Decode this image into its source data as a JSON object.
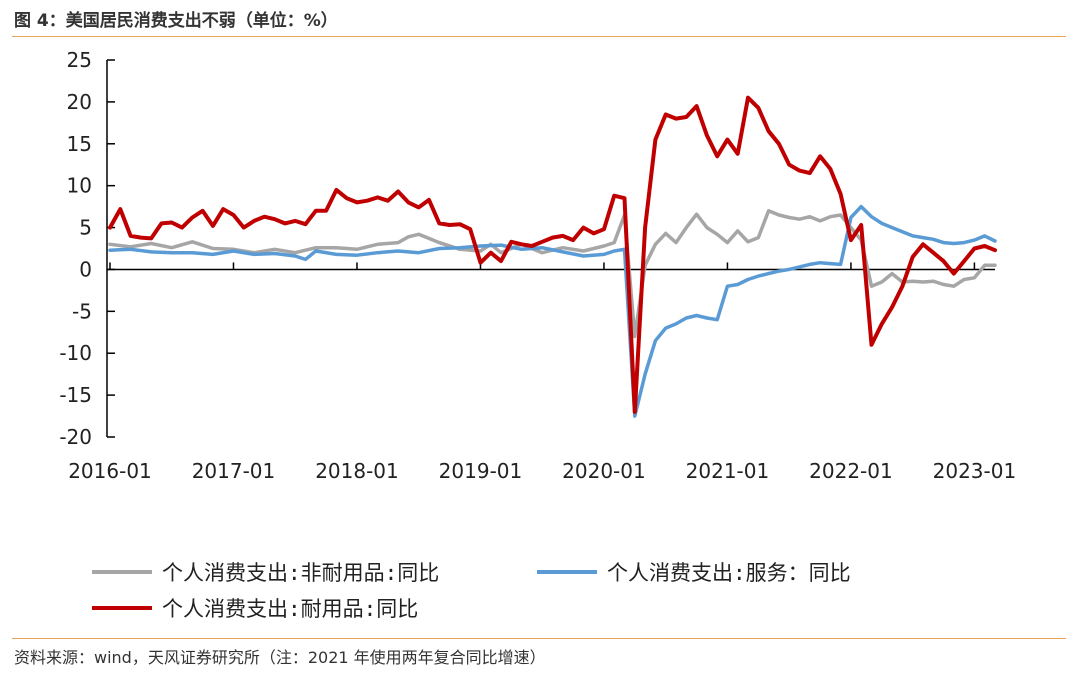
{
  "figure": {
    "title": "图 4：美国居民消费支出不弱（单位：%）",
    "source": "资料来源：wind，天风证券研究所（注：2021 年使用两年复合同比增速）"
  },
  "chart_data": {
    "type": "line",
    "x_tick_labels": [
      "2016-01",
      "2017-01",
      "2018-01",
      "2019-01",
      "2020-01",
      "2021-01",
      "2022-01",
      "2023-01"
    ],
    "y_ticks": [
      25,
      20,
      15,
      10,
      5,
      0,
      -5,
      -10,
      -15,
      -20
    ],
    "ylim": [
      -20,
      25
    ],
    "xlim": [
      "2016-01",
      "2023-03"
    ],
    "grid": false,
    "legend_position": "bottom",
    "series": [
      {
        "name": "个人消费支出:非耐用品:同比",
        "color": "#a6a6a6",
        "values": [
          [
            "2016-01",
            3.0
          ],
          [
            "2016-03",
            2.7
          ],
          [
            "2016-05",
            3.1
          ],
          [
            "2016-07",
            2.6
          ],
          [
            "2016-09",
            3.3
          ],
          [
            "2016-11",
            2.5
          ],
          [
            "2017-01",
            2.4
          ],
          [
            "2017-03",
            2.0
          ],
          [
            "2017-05",
            2.4
          ],
          [
            "2017-07",
            2.0
          ],
          [
            "2017-09",
            2.6
          ],
          [
            "2017-11",
            2.6
          ],
          [
            "2018-01",
            2.4
          ],
          [
            "2018-03",
            3.0
          ],
          [
            "2018-05",
            3.2
          ],
          [
            "2018-06",
            3.9
          ],
          [
            "2018-07",
            4.2
          ],
          [
            "2018-09",
            3.2
          ],
          [
            "2018-11",
            2.4
          ],
          [
            "2019-01",
            2.2
          ],
          [
            "2019-02",
            3.0
          ],
          [
            "2019-03",
            2.0
          ],
          [
            "2019-05",
            3.0
          ],
          [
            "2019-07",
            2.0
          ],
          [
            "2019-09",
            2.6
          ],
          [
            "2019-11",
            2.2
          ],
          [
            "2020-01",
            2.8
          ],
          [
            "2020-02",
            3.2
          ],
          [
            "2020-03",
            6.5
          ],
          [
            "2020-04",
            -8.0
          ],
          [
            "2020-05",
            0.5
          ],
          [
            "2020-06",
            3.0
          ],
          [
            "2020-07",
            4.3
          ],
          [
            "2020-08",
            3.2
          ],
          [
            "2020-09",
            5.0
          ],
          [
            "2020-10",
            6.6
          ],
          [
            "2020-11",
            5.0
          ],
          [
            "2020-12",
            4.2
          ],
          [
            "2021-01",
            3.2
          ],
          [
            "2021-02",
            4.6
          ],
          [
            "2021-03",
            3.3
          ],
          [
            "2021-04",
            3.8
          ],
          [
            "2021-05",
            7.0
          ],
          [
            "2021-06",
            6.5
          ],
          [
            "2021-07",
            6.2
          ],
          [
            "2021-08",
            6.0
          ],
          [
            "2021-09",
            6.3
          ],
          [
            "2021-10",
            5.8
          ],
          [
            "2021-11",
            6.3
          ],
          [
            "2021-12",
            6.5
          ],
          [
            "2022-01",
            5.0
          ],
          [
            "2022-02",
            3.5
          ],
          [
            "2022-03",
            -2.0
          ],
          [
            "2022-04",
            -1.5
          ],
          [
            "2022-05",
            -0.5
          ],
          [
            "2022-06",
            -1.5
          ],
          [
            "2022-07",
            -1.4
          ],
          [
            "2022-08",
            -1.5
          ],
          [
            "2022-09",
            -1.4
          ],
          [
            "2022-10",
            -1.8
          ],
          [
            "2022-11",
            -2.0
          ],
          [
            "2022-12",
            -1.2
          ],
          [
            "2023-01",
            -1.0
          ],
          [
            "2023-02",
            0.5
          ],
          [
            "2023-03",
            0.5
          ]
        ]
      },
      {
        "name": "个人消费支出:服务：同比",
        "color": "#5b9bd5",
        "values": [
          [
            "2016-01",
            2.3
          ],
          [
            "2016-03",
            2.4
          ],
          [
            "2016-05",
            2.1
          ],
          [
            "2016-07",
            2.0
          ],
          [
            "2016-09",
            2.0
          ],
          [
            "2016-11",
            1.8
          ],
          [
            "2017-01",
            2.2
          ],
          [
            "2017-03",
            1.8
          ],
          [
            "2017-05",
            1.9
          ],
          [
            "2017-07",
            1.6
          ],
          [
            "2017-08",
            1.2
          ],
          [
            "2017-09",
            2.2
          ],
          [
            "2017-11",
            1.8
          ],
          [
            "2018-01",
            1.7
          ],
          [
            "2018-03",
            2.0
          ],
          [
            "2018-05",
            2.2
          ],
          [
            "2018-07",
            2.0
          ],
          [
            "2018-09",
            2.5
          ],
          [
            "2018-11",
            2.6
          ],
          [
            "2019-01",
            2.8
          ],
          [
            "2019-03",
            2.9
          ],
          [
            "2019-05",
            2.4
          ],
          [
            "2019-07",
            2.6
          ],
          [
            "2019-09",
            2.1
          ],
          [
            "2019-11",
            1.6
          ],
          [
            "2020-01",
            1.8
          ],
          [
            "2020-02",
            2.2
          ],
          [
            "2020-03",
            2.4
          ],
          [
            "2020-04",
            -17.5
          ],
          [
            "2020-05",
            -12.5
          ],
          [
            "2020-06",
            -8.5
          ],
          [
            "2020-07",
            -7.0
          ],
          [
            "2020-08",
            -6.5
          ],
          [
            "2020-09",
            -5.8
          ],
          [
            "2020-10",
            -5.5
          ],
          [
            "2020-11",
            -5.8
          ],
          [
            "2020-12",
            -6.0
          ],
          [
            "2021-01",
            -2.0
          ],
          [
            "2021-02",
            -1.8
          ],
          [
            "2021-03",
            -1.2
          ],
          [
            "2021-04",
            -0.8
          ],
          [
            "2021-05",
            -0.5
          ],
          [
            "2021-06",
            -0.2
          ],
          [
            "2021-07",
            0.0
          ],
          [
            "2021-08",
            0.3
          ],
          [
            "2021-09",
            0.6
          ],
          [
            "2021-10",
            0.8
          ],
          [
            "2021-11",
            0.7
          ],
          [
            "2021-12",
            0.6
          ],
          [
            "2022-01",
            6.2
          ],
          [
            "2022-02",
            7.5
          ],
          [
            "2022-03",
            6.3
          ],
          [
            "2022-04",
            5.5
          ],
          [
            "2022-05",
            5.0
          ],
          [
            "2022-06",
            4.5
          ],
          [
            "2022-07",
            4.0
          ],
          [
            "2022-08",
            3.8
          ],
          [
            "2022-09",
            3.6
          ],
          [
            "2022-10",
            3.2
          ],
          [
            "2022-11",
            3.1
          ],
          [
            "2022-12",
            3.2
          ],
          [
            "2023-01",
            3.5
          ],
          [
            "2023-02",
            4.0
          ],
          [
            "2023-03",
            3.4
          ]
        ]
      },
      {
        "name": "个人消费支出:耐用品:同比",
        "color": "#c00000",
        "values": [
          [
            "2016-01",
            5.0
          ],
          [
            "2016-02",
            7.2
          ],
          [
            "2016-03",
            4.0
          ],
          [
            "2016-04",
            3.8
          ],
          [
            "2016-05",
            3.7
          ],
          [
            "2016-06",
            5.5
          ],
          [
            "2016-07",
            5.6
          ],
          [
            "2016-08",
            5.0
          ],
          [
            "2016-09",
            6.2
          ],
          [
            "2016-10",
            7.0
          ],
          [
            "2016-11",
            5.2
          ],
          [
            "2016-12",
            7.2
          ],
          [
            "2017-01",
            6.5
          ],
          [
            "2017-02",
            5.0
          ],
          [
            "2017-03",
            5.8
          ],
          [
            "2017-04",
            6.3
          ],
          [
            "2017-05",
            6.0
          ],
          [
            "2017-06",
            5.5
          ],
          [
            "2017-07",
            5.8
          ],
          [
            "2017-08",
            5.4
          ],
          [
            "2017-09",
            7.0
          ],
          [
            "2017-10",
            7.0
          ],
          [
            "2017-11",
            9.5
          ],
          [
            "2017-12",
            8.5
          ],
          [
            "2018-01",
            8.0
          ],
          [
            "2018-02",
            8.2
          ],
          [
            "2018-03",
            8.6
          ],
          [
            "2018-04",
            8.2
          ],
          [
            "2018-05",
            9.3
          ],
          [
            "2018-06",
            8.0
          ],
          [
            "2018-07",
            7.4
          ],
          [
            "2018-08",
            8.3
          ],
          [
            "2018-09",
            5.5
          ],
          [
            "2018-10",
            5.3
          ],
          [
            "2018-11",
            5.4
          ],
          [
            "2018-12",
            4.8
          ],
          [
            "2019-01",
            0.8
          ],
          [
            "2019-02",
            2.0
          ],
          [
            "2019-03",
            1.0
          ],
          [
            "2019-04",
            3.3
          ],
          [
            "2019-05",
            3.0
          ],
          [
            "2019-06",
            2.8
          ],
          [
            "2019-07",
            3.3
          ],
          [
            "2019-08",
            3.8
          ],
          [
            "2019-09",
            4.0
          ],
          [
            "2019-10",
            3.5
          ],
          [
            "2019-11",
            5.0
          ],
          [
            "2019-12",
            4.3
          ],
          [
            "2020-01",
            4.8
          ],
          [
            "2020-02",
            8.8
          ],
          [
            "2020-03",
            8.5
          ],
          [
            "2020-04",
            -17.0
          ],
          [
            "2020-05",
            5.0
          ],
          [
            "2020-06",
            15.5
          ],
          [
            "2020-07",
            18.5
          ],
          [
            "2020-08",
            18.0
          ],
          [
            "2020-09",
            18.2
          ],
          [
            "2020-10",
            19.5
          ],
          [
            "2020-11",
            16.0
          ],
          [
            "2020-12",
            13.5
          ],
          [
            "2021-01",
            15.5
          ],
          [
            "2021-02",
            13.8
          ],
          [
            "2021-03",
            20.5
          ],
          [
            "2021-04",
            19.3
          ],
          [
            "2021-05",
            16.5
          ],
          [
            "2021-06",
            15.0
          ],
          [
            "2021-07",
            12.5
          ],
          [
            "2021-08",
            11.8
          ],
          [
            "2021-09",
            11.5
          ],
          [
            "2021-10",
            13.5
          ],
          [
            "2021-11",
            12.0
          ],
          [
            "2021-12",
            9.0
          ],
          [
            "2022-01",
            3.5
          ],
          [
            "2022-02",
            5.3
          ],
          [
            "2022-03",
            -9.0
          ],
          [
            "2022-04",
            -6.5
          ],
          [
            "2022-05",
            -4.5
          ],
          [
            "2022-06",
            -2.0
          ],
          [
            "2022-07",
            1.5
          ],
          [
            "2022-08",
            3.0
          ],
          [
            "2022-09",
            2.0
          ],
          [
            "2022-10",
            1.0
          ],
          [
            "2022-11",
            -0.5
          ],
          [
            "2022-12",
            1.0
          ],
          [
            "2023-01",
            2.5
          ],
          [
            "2023-02",
            2.8
          ],
          [
            "2023-03",
            2.3
          ]
        ]
      }
    ]
  }
}
